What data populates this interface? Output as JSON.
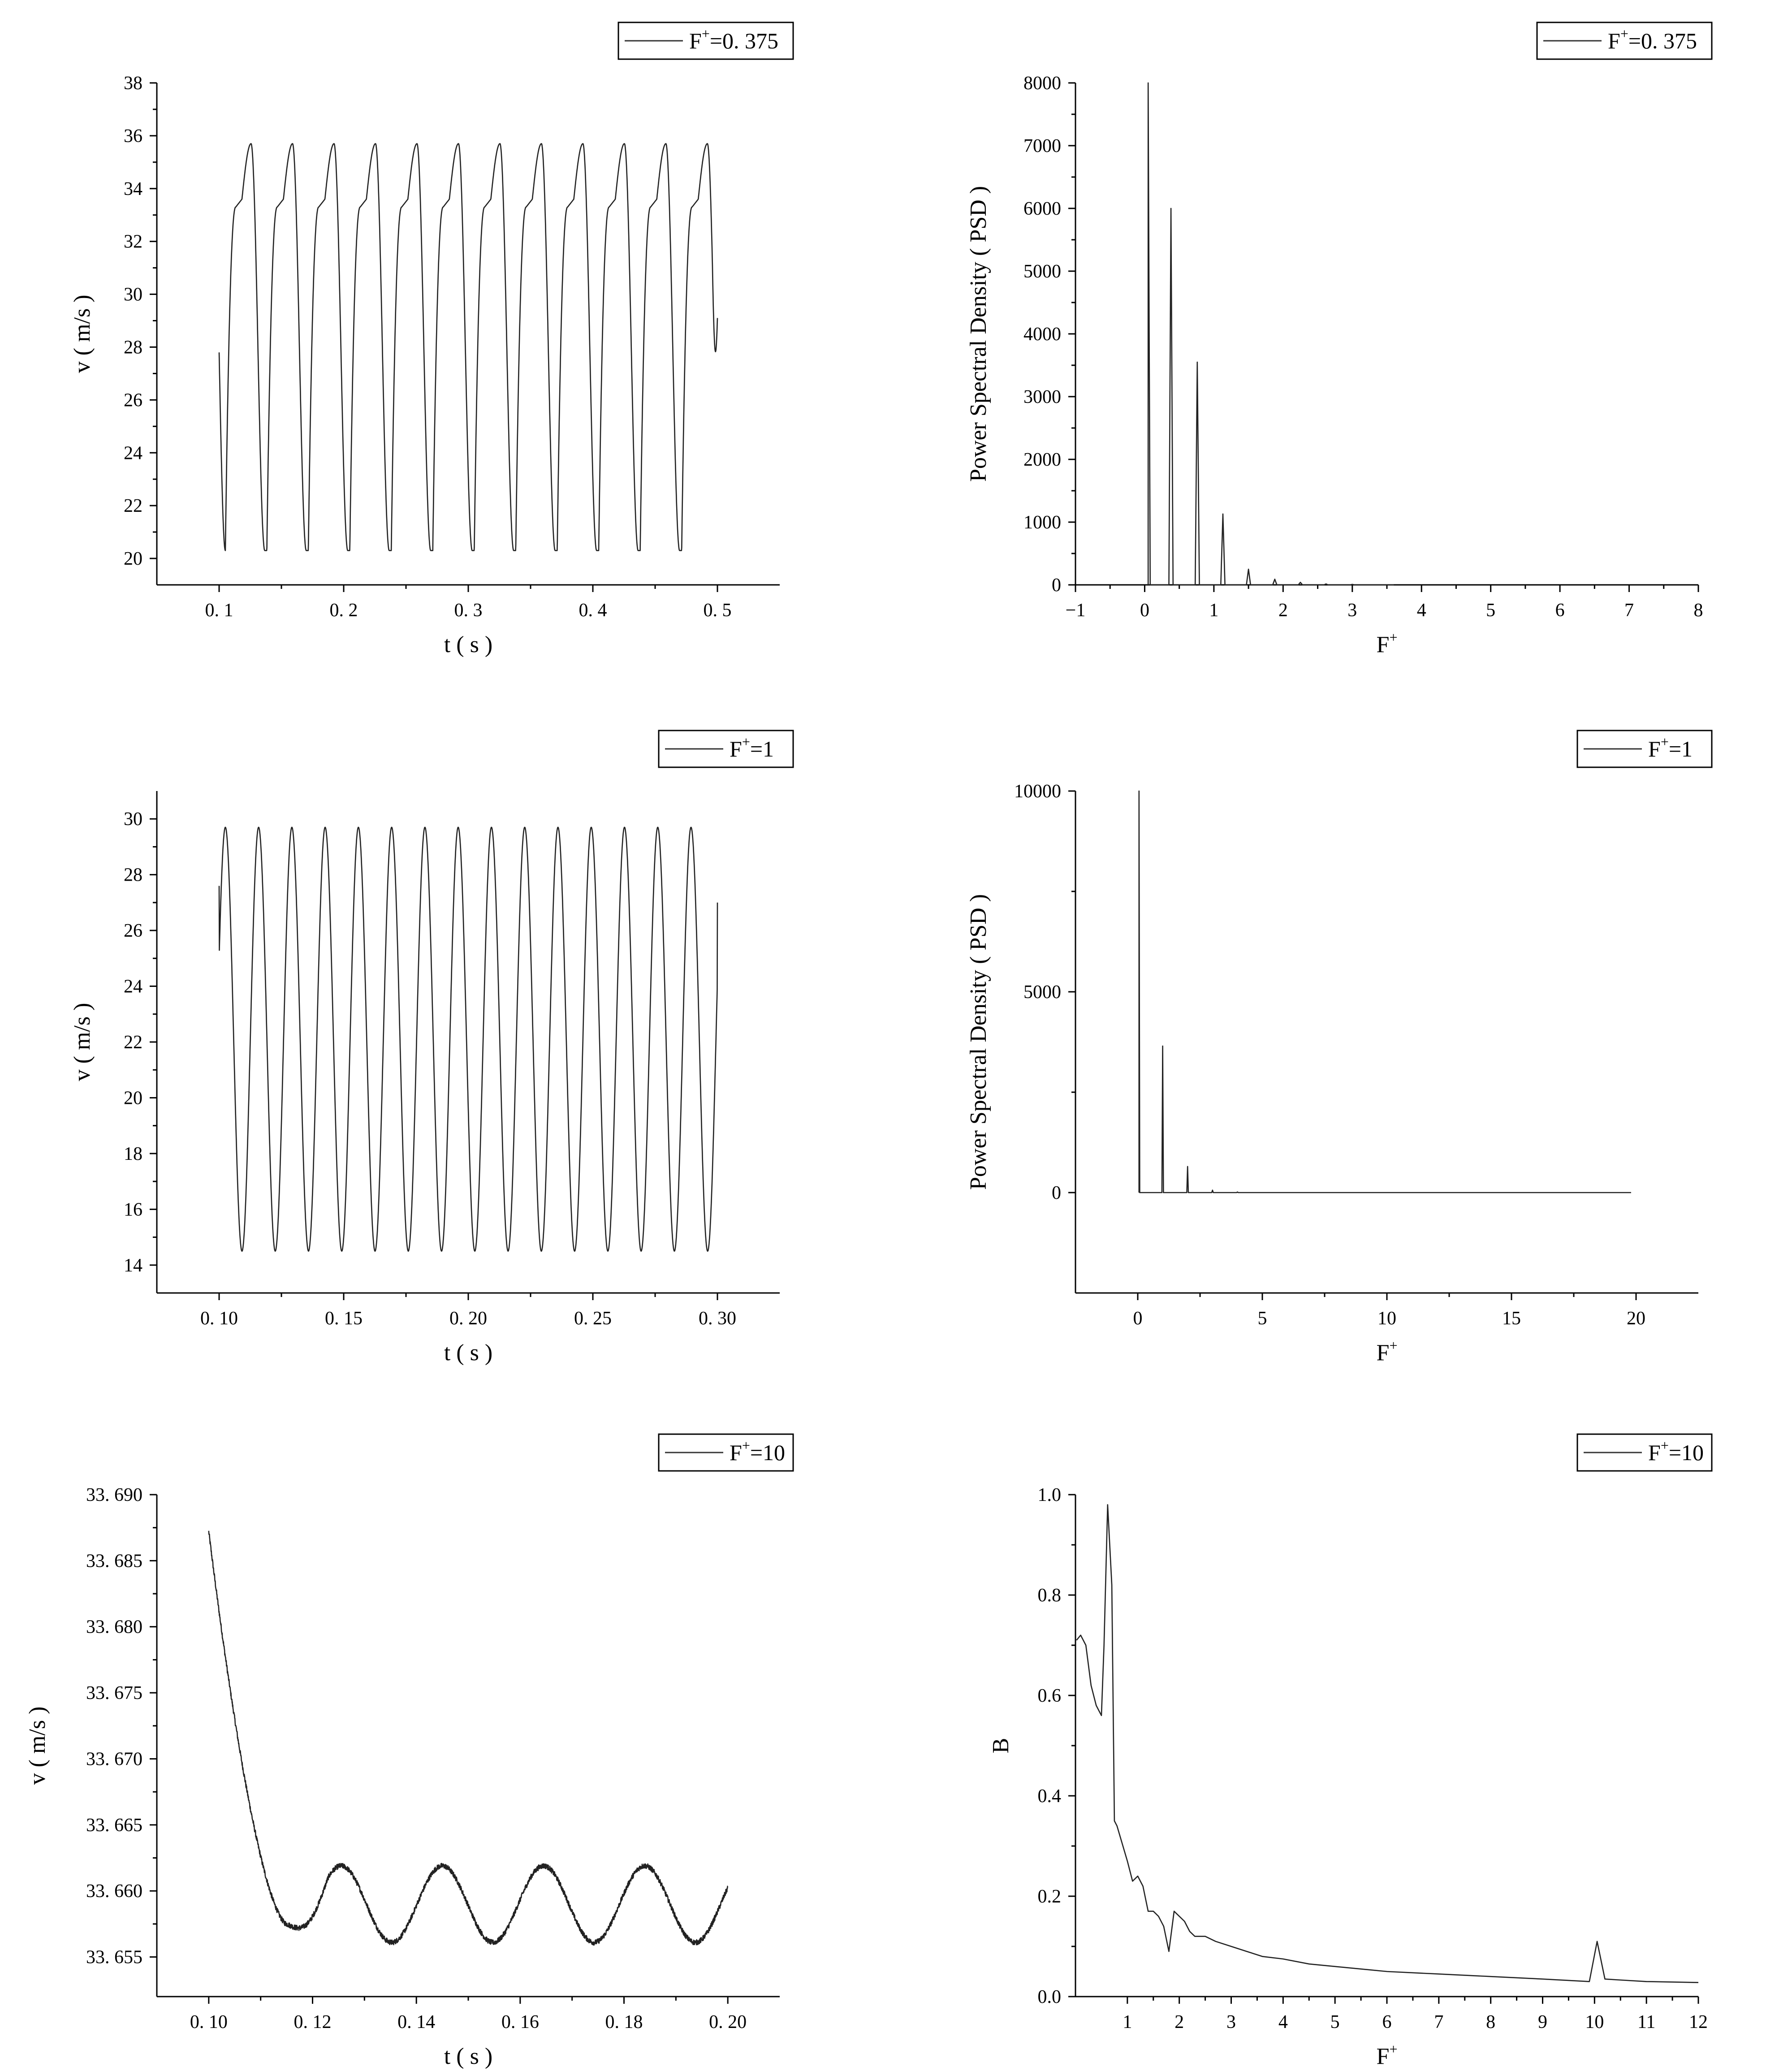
{
  "chart_data": [
    {
      "id": "p1",
      "type": "line",
      "title": "",
      "xlabel": "t ( s )",
      "ylabel": "v ( m/s )",
      "xlim": [
        0.05,
        0.55
      ],
      "ylim": [
        19,
        38
      ],
      "xticks": [
        0.1,
        0.2,
        0.3,
        0.4,
        0.5
      ],
      "xtick_labels": [
        "0. 1",
        "0. 2",
        "0. 3",
        "0. 4",
        "0. 5"
      ],
      "yticks": [
        20,
        22,
        24,
        26,
        28,
        30,
        32,
        34,
        36,
        38
      ],
      "ytick_labels": [
        "20",
        "22",
        "24",
        "26",
        "28",
        "30",
        "32",
        "34",
        "36",
        "38"
      ],
      "legend": {
        "base": "F",
        "sup": "+",
        "value": "=0. 375",
        "position": "top-right"
      },
      "grid": false,
      "series": [
        {
          "wave": "plateau",
          "x_start": 0.1,
          "x_end": 0.5,
          "period": 0.0333,
          "min": 20.3,
          "max": 35.7,
          "plateau": 33.3,
          "start_value": 27.8,
          "end_value": 29.1
        }
      ]
    },
    {
      "id": "p2",
      "type": "line",
      "title": "",
      "xlabel": "F+",
      "ylabel": "Power Spectral Density ( PSD )",
      "xlim": [
        -1,
        8
      ],
      "ylim": [
        0,
        8000
      ],
      "xticks": [
        -1,
        0,
        1,
        2,
        3,
        4,
        5,
        6,
        7,
        8
      ],
      "xtick_labels": [
        "−1",
        "0",
        "1",
        "2",
        "3",
        "4",
        "5",
        "6",
        "7",
        "8"
      ],
      "yticks": [
        0,
        1000,
        2000,
        3000,
        4000,
        5000,
        6000,
        7000,
        8000
      ],
      "ytick_labels": [
        "0",
        "1000",
        "2000",
        "3000",
        "4000",
        "5000",
        "6000",
        "7000",
        "8000"
      ],
      "legend": {
        "base": "F",
        "sup": "+",
        "value": "=0. 375",
        "position": "top-right"
      },
      "grid": false,
      "series": [
        {
          "wave": "spikes",
          "x_start": 0.05,
          "x_end": 3.6,
          "peaks": [
            [
              0.05,
              8000
            ],
            [
              0.38,
              6000
            ],
            [
              0.76,
              3550
            ],
            [
              1.13,
              1130
            ],
            [
              1.5,
              250
            ],
            [
              1.88,
              90
            ],
            [
              2.25,
              40
            ],
            [
              2.62,
              15
            ],
            [
              3.0,
              8
            ]
          ]
        }
      ]
    },
    {
      "id": "p3",
      "type": "line",
      "title": "",
      "xlabel": "t ( s )",
      "ylabel": "v ( m/s )",
      "xlim": [
        0.075,
        0.325
      ],
      "ylim": [
        13,
        31
      ],
      "xticks": [
        0.1,
        0.15,
        0.2,
        0.25,
        0.3
      ],
      "xtick_labels": [
        "0. 10",
        "0. 15",
        "0. 20",
        "0. 25",
        "0. 30"
      ],
      "yticks": [
        14,
        16,
        18,
        20,
        22,
        24,
        26,
        28,
        30
      ],
      "ytick_labels": [
        "14",
        "16",
        "18",
        "20",
        "22",
        "24",
        "26",
        "28",
        "30"
      ],
      "legend": {
        "base": "F",
        "sup": "+",
        "value": "=1",
        "position": "top-right"
      },
      "grid": false,
      "series": [
        {
          "wave": "sine",
          "x_start": 0.1,
          "x_end": 0.3,
          "period": 0.01335,
          "first_peak": 0.1025,
          "min": 14.5,
          "max": 29.7,
          "start_value": 27.6,
          "end_value": 27.0
        }
      ]
    },
    {
      "id": "p4",
      "type": "line",
      "title": "",
      "xlabel": "F+",
      "ylabel": "Power Spectral Density ( PSD )",
      "xlim": [
        -2.5,
        22.5
      ],
      "ylim": [
        -2500,
        10000
      ],
      "xticks": [
        0,
        5,
        10,
        15,
        20
      ],
      "xtick_labels": [
        "0",
        "5",
        "10",
        "15",
        "20"
      ],
      "yticks": [
        0,
        5000,
        10000
      ],
      "ytick_labels": [
        "0",
        "5000",
        "10000"
      ],
      "legend": {
        "base": "F",
        "sup": "+",
        "value": "=1",
        "position": "top-right"
      },
      "grid": false,
      "series": [
        {
          "wave": "spikes",
          "x_start": 0.05,
          "x_end": 19.8,
          "peaks": [
            [
              0.05,
              10000
            ],
            [
              1.0,
              3650
            ],
            [
              2.0,
              650
            ],
            [
              3.0,
              60
            ],
            [
              4.0,
              15
            ]
          ]
        }
      ]
    },
    {
      "id": "p5",
      "type": "line",
      "title": "",
      "xlabel": "t ( s )",
      "ylabel": "v ( m/s )",
      "xlim": [
        0.09,
        0.21
      ],
      "ylim": [
        33.652,
        33.69
      ],
      "xticks": [
        0.1,
        0.12,
        0.14,
        0.16,
        0.18,
        0.2
      ],
      "xtick_labels": [
        "0. 10",
        "0. 12",
        "0. 14",
        "0. 16",
        "0. 18",
        "0. 20"
      ],
      "yticks": [
        33.655,
        33.66,
        33.665,
        33.67,
        33.675,
        33.68,
        33.685,
        33.69
      ],
      "ytick_labels": [
        "33. 655",
        "33. 660",
        "33. 665",
        "33. 670",
        "33. 675",
        "33. 680",
        "33. 685",
        "33. 690"
      ],
      "legend": {
        "base": "F",
        "sup": "+",
        "value": "=10",
        "position": "top-right"
      },
      "grid": false,
      "series": [
        {
          "wave": "decay",
          "x_start": 0.1,
          "x_end": 0.2,
          "start_value": 33.6872,
          "settle_time": 0.115,
          "mean": 33.659,
          "amplitude": 0.0029,
          "period": 0.0195,
          "first_peak": 0.1255,
          "noise": 0.0004
        }
      ]
    },
    {
      "id": "p6",
      "type": "line",
      "title": "",
      "xlabel": "F+",
      "ylabel": "B",
      "xlim": [
        0,
        12
      ],
      "ylim": [
        0,
        1
      ],
      "xticks": [
        1,
        2,
        3,
        4,
        5,
        6,
        7,
        8,
        9,
        10,
        11,
        12
      ],
      "xtick_labels": [
        "1",
        "2",
        "3",
        "4",
        "5",
        "6",
        "7",
        "8",
        "9",
        "10",
        "11",
        "12"
      ],
      "yticks": [
        0,
        0.2,
        0.4,
        0.6,
        0.8,
        1.0
      ],
      "ytick_labels": [
        "0.0",
        "0.2",
        "0.4",
        "0.6",
        "0.8",
        "1.0"
      ],
      "legend": {
        "base": "F",
        "sup": "+",
        "value": "=10",
        "position": "top-right"
      },
      "grid": false,
      "series": [
        {
          "wave": "points",
          "x": [
            0.02,
            0.1,
            0.2,
            0.3,
            0.4,
            0.5,
            0.55,
            0.62,
            0.7,
            0.75,
            0.8,
            1.0,
            1.1,
            1.2,
            1.3,
            1.4,
            1.5,
            1.6,
            1.7,
            1.8,
            1.9,
            2.0,
            2.1,
            2.2,
            2.3,
            2.5,
            2.7,
            3.0,
            3.3,
            3.6,
            4.0,
            4.5,
            5.0,
            6.0,
            7.0,
            8.0,
            9.0,
            9.9,
            10.05,
            10.2,
            10.5,
            11.0,
            12.0
          ],
          "y": [
            0.71,
            0.72,
            0.7,
            0.62,
            0.58,
            0.56,
            0.7,
            0.98,
            0.82,
            0.35,
            0.34,
            0.27,
            0.23,
            0.24,
            0.22,
            0.17,
            0.17,
            0.16,
            0.14,
            0.09,
            0.17,
            0.16,
            0.15,
            0.13,
            0.12,
            0.12,
            0.11,
            0.1,
            0.09,
            0.08,
            0.075,
            0.065,
            0.06,
            0.05,
            0.045,
            0.04,
            0.035,
            0.03,
            0.11,
            0.035,
            0.033,
            0.03,
            0.028
          ]
        }
      ]
    }
  ]
}
